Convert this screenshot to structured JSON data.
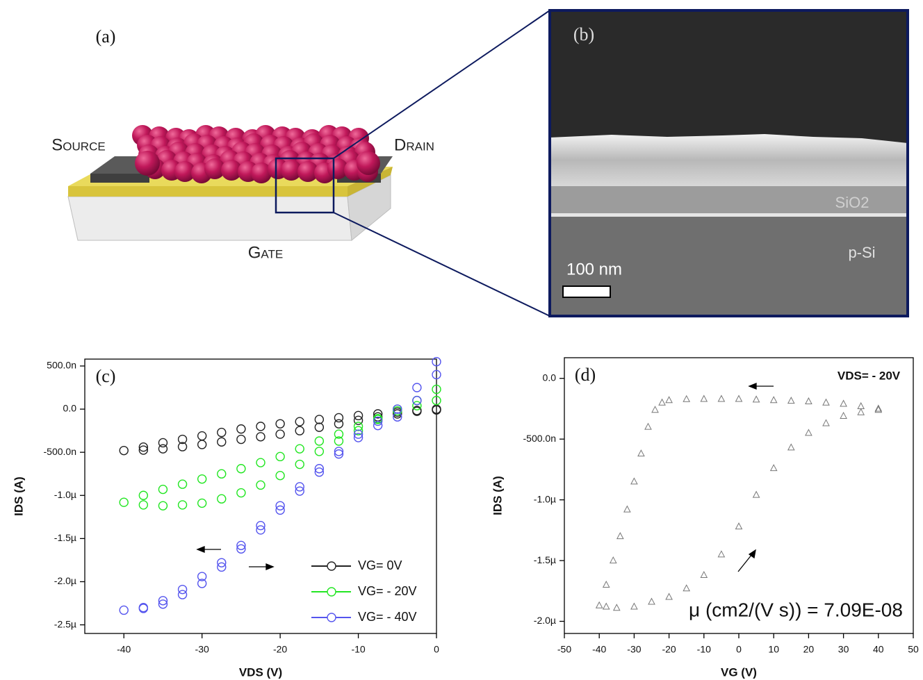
{
  "panel_a": {
    "label": "(a)",
    "source": "Source",
    "drain": "Drain",
    "gate": "Gate"
  },
  "panel_b": {
    "label": "(b)",
    "layers": [
      "SiO2",
      "p-Si"
    ],
    "scale_bar": "100 nm"
  },
  "chart_data": [
    {
      "type": "scatter",
      "panel_label": "(c)",
      "x_label": "VDS (V)",
      "y_label": "IDS (A)",
      "marker": "circle",
      "legend": "lower right",
      "x": [
        0,
        -2.5,
        -5,
        -7.5,
        -10,
        -12.5,
        -15,
        -17.5,
        -20,
        -22.5,
        -25,
        -27.5,
        -30,
        -32.5,
        -35,
        -37.5,
        -40,
        -37.5,
        -35,
        -32.5,
        -30,
        -27.5,
        -25,
        -22.5,
        -20,
        -17.5,
        -15,
        -12.5,
        -10,
        -7.5,
        -5,
        -2.5,
        0
      ],
      "series": [
        {
          "name": "VG= 0V",
          "color": "#222222",
          "values": [
            0,
            -1.5e-08,
            -3.5e-08,
            -5.5e-08,
            -7.5e-08,
            -1e-07,
            -1.2e-07,
            -1.45e-07,
            -1.7e-07,
            -2e-07,
            -2.3e-07,
            -2.7e-07,
            -3.1e-07,
            -3.5e-07,
            -3.9e-07,
            -4.4e-07,
            -4.8e-07,
            -4.75e-07,
            -4.6e-07,
            -4.35e-07,
            -4.1e-07,
            -3.8e-07,
            -3.5e-07,
            -3.2e-07,
            -2.9e-07,
            -2.5e-07,
            -2.1e-07,
            -1.7e-07,
            -1.3e-07,
            -9e-08,
            -5.5e-08,
            -2.5e-08,
            -1e-08
          ]
        },
        {
          "name": "VG= - 20V",
          "color": "#22e622",
          "values": [
            2.3e-07,
            1e-07,
            -2e-08,
            -1.1e-07,
            -2e-07,
            -2.9e-07,
            -3.7e-07,
            -4.6e-07,
            -5.5e-07,
            -6.2e-07,
            -6.9e-07,
            -7.5e-07,
            -8.1e-07,
            -8.7e-07,
            -9.3e-07,
            -1e-06,
            -1.08e-06,
            -1.11e-06,
            -1.12e-06,
            -1.11e-06,
            -1.09e-06,
            -1.04e-06,
            -9.7e-07,
            -8.8e-07,
            -7.7e-07,
            -6.4e-07,
            -4.9e-07,
            -3.7e-07,
            -2.5e-07,
            -1.2e-07,
            0,
            4e-08,
            1e-07
          ]
        },
        {
          "name": "VG= - 40V",
          "color": "#5555ee",
          "values": [
            5.5e-07,
            2.5e-07,
            0,
            -1.4e-07,
            -2.9e-07,
            -4.9e-07,
            -6.9e-07,
            -9e-07,
            -1.12e-06,
            -1.35e-06,
            -1.58e-06,
            -1.78e-06,
            -1.94e-06,
            -2.09e-06,
            -2.22e-06,
            -2.3e-06,
            -2.33e-06,
            -2.31e-06,
            -2.26e-06,
            -2.15e-06,
            -2.02e-06,
            -1.83e-06,
            -1.62e-06,
            -1.4e-06,
            -1.17e-06,
            -9.5e-07,
            -7.3e-07,
            -5.2e-07,
            -3.3e-07,
            -1.9e-07,
            -9e-08,
            1e-07,
            4e-07
          ]
        }
      ],
      "xlim": [
        -45,
        0
      ],
      "xticks": [
        -40,
        -30,
        -20,
        -10,
        0
      ],
      "ylim": [
        -2.6e-06,
        5.8e-07
      ],
      "yticks": [
        {
          "value": 5e-07,
          "label": "500.0n"
        },
        {
          "value": 0,
          "label": "0.0"
        },
        {
          "value": -5e-07,
          "label": "-500.0n"
        },
        {
          "value": -1e-06,
          "label": "-1.0µ"
        },
        {
          "value": -1.5e-06,
          "label": "-1.5µ"
        },
        {
          "value": -2e-06,
          "label": "-2.0µ"
        },
        {
          "value": -2.5e-06,
          "label": "-2.5µ"
        }
      ]
    },
    {
      "type": "scatter",
      "panel_label": "(d)",
      "x_label": "VG (V)",
      "y_label": "IDS (A)",
      "marker": "triangle",
      "color": "#777777",
      "annotations": [
        "VDS= - 20V",
        "μ (cm2/(V s)) = 7.09E-08"
      ],
      "x": [
        40,
        35,
        30,
        25,
        20,
        15,
        10,
        5,
        0,
        -5,
        -10,
        -15,
        -20,
        -22,
        -24,
        -26,
        -28,
        -30,
        -32,
        -34,
        -36,
        -38,
        -40,
        -38,
        -35,
        -30,
        -25,
        -20,
        -15,
        -10,
        -5,
        0,
        5,
        10,
        15,
        20,
        25,
        30,
        35,
        40
      ],
      "values": [
        -2.5e-07,
        -2.3e-07,
        -2.1e-07,
        -2e-07,
        -1.9e-07,
        -1.85e-07,
        -1.8e-07,
        -1.75e-07,
        -1.7e-07,
        -1.7e-07,
        -1.7e-07,
        -1.72e-07,
        -1.8e-07,
        -2e-07,
        -2.6e-07,
        -4e-07,
        -6.2e-07,
        -8.5e-07,
        -1.08e-06,
        -1.3e-06,
        -1.5e-06,
        -1.7e-06,
        -1.87e-06,
        -1.88e-06,
        -1.89e-06,
        -1.88e-06,
        -1.84e-06,
        -1.8e-06,
        -1.73e-06,
        -1.62e-06,
        -1.45e-06,
        -1.22e-06,
        -9.6e-07,
        -7.4e-07,
        -5.7e-07,
        -4.5e-07,
        -3.7e-07,
        -3.1e-07,
        -2.8e-07,
        -2.6e-07
      ],
      "xlim": [
        -50,
        50
      ],
      "xticks": [
        -50,
        -40,
        -30,
        -20,
        -10,
        0,
        10,
        20,
        30,
        40,
        50
      ],
      "ylim": [
        -2.1e-06,
        1.7e-07
      ],
      "yticks": [
        {
          "value": 0,
          "label": "0.0"
        },
        {
          "value": -5e-07,
          "label": "-500.0n"
        },
        {
          "value": -1e-06,
          "label": "-1.0µ"
        },
        {
          "value": -1.5e-06,
          "label": "-1.5µ"
        },
        {
          "value": -2e-06,
          "label": "-2.0µ"
        }
      ]
    }
  ]
}
